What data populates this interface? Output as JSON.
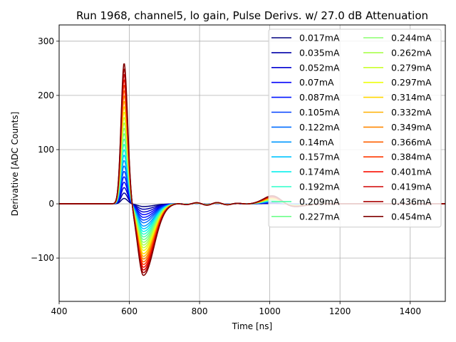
{
  "chart_data": {
    "type": "line",
    "title": "Run 1968, channel5, lo gain, Pulse Derivs. w/ 27.0 dB Attenuation",
    "xlabel": "Time [ns]",
    "ylabel": "Derivative [ADC Counts]",
    "xlim": [
      400,
      1500
    ],
    "ylim": [
      -180,
      330
    ],
    "xticks": [
      400,
      600,
      800,
      1000,
      1200,
      1400
    ],
    "yticks": [
      -100,
      0,
      100,
      200,
      300
    ],
    "ytick_labels": [
      "−100",
      "0",
      "100",
      "200",
      "300"
    ],
    "grid": true,
    "legend": {
      "placement": "upper-right",
      "columns": 2
    },
    "pulse_shape": {
      "baseline": 0,
      "peak_time": 585,
      "trough_time": 640,
      "late_bump_time": 1010,
      "max_peak": 305,
      "max_trough": -157
    },
    "series": [
      {
        "name": "0.017mA",
        "color": "#00007f",
        "peak": 10,
        "trough": -5
      },
      {
        "name": "0.035mA",
        "color": "#0000a8",
        "peak": 20,
        "trough": -10
      },
      {
        "name": "0.052mA",
        "color": "#0000d1",
        "peak": 30,
        "trough": -15
      },
      {
        "name": "0.07mA",
        "color": "#0000fa",
        "peak": 40,
        "trough": -20
      },
      {
        "name": "0.087mA",
        "color": "#0014ff",
        "peak": 50,
        "trough": -25
      },
      {
        "name": "0.105mA",
        "color": "#0040ff",
        "peak": 60,
        "trough": -30
      },
      {
        "name": "0.122mA",
        "color": "#006cff",
        "peak": 70,
        "trough": -35
      },
      {
        "name": "0.14mA",
        "color": "#0098ff",
        "peak": 80,
        "trough": -41
      },
      {
        "name": "0.157mA",
        "color": "#00c4ff",
        "peak": 90,
        "trough": -46
      },
      {
        "name": "0.174mA",
        "color": "#08f0ee",
        "peak": 100,
        "trough": -51
      },
      {
        "name": "0.192mA",
        "color": "#2cffca",
        "peak": 110,
        "trough": -56
      },
      {
        "name": "0.209mA",
        "color": "#4dffaa",
        "peak": 120,
        "trough": -61
      },
      {
        "name": "0.227mA",
        "color": "#6dff8a",
        "peak": 130,
        "trough": -66
      },
      {
        "name": "0.244mA",
        "color": "#8aff6d",
        "peak": 140,
        "trough": -71
      },
      {
        "name": "0.262mA",
        "color": "#aaff4d",
        "peak": 150,
        "trough": -76
      },
      {
        "name": "0.279mA",
        "color": "#caff2c",
        "peak": 160,
        "trough": -81
      },
      {
        "name": "0.297mA",
        "color": "#eeff08",
        "peak": 170,
        "trough": -86
      },
      {
        "name": "0.314mA",
        "color": "#ffd800",
        "peak": 180,
        "trough": -92
      },
      {
        "name": "0.332mA",
        "color": "#ffb000",
        "peak": 190,
        "trough": -97
      },
      {
        "name": "0.349mA",
        "color": "#ff8800",
        "peak": 200,
        "trough": -102
      },
      {
        "name": "0.366mA",
        "color": "#ff6000",
        "peak": 210,
        "trough": -107
      },
      {
        "name": "0.384mA",
        "color": "#ff3800",
        "peak": 220,
        "trough": -112
      },
      {
        "name": "0.401mA",
        "color": "#fa0f00",
        "peak": 230,
        "trough": -117
      },
      {
        "name": "0.419mA",
        "color": "#d10000",
        "peak": 240,
        "trough": -122
      },
      {
        "name": "0.436mA",
        "color": "#a80000",
        "peak": 250,
        "trough": -127
      },
      {
        "name": "0.454mA",
        "color": "#7f0000",
        "peak": 260,
        "trough": -132
      }
    ]
  }
}
